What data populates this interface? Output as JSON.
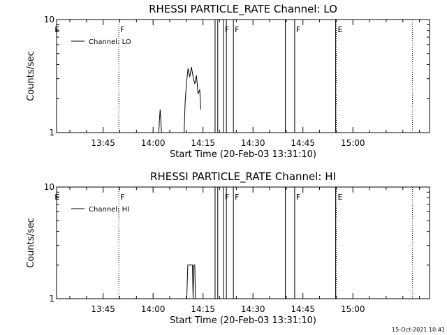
{
  "chart_data": [
    {
      "type": "line",
      "title": "RHESSI PARTICLE_RATE Channel: LO",
      "xlabel": "Start Time (20-Feb-03 13:31:10)",
      "ylabel": "Counts/sec",
      "x_tick_labels": [
        "13:45",
        "14:00",
        "14:15",
        "14:30",
        "14:45",
        "15:00"
      ],
      "x_tick_values_min": [
        13.98,
        28.98,
        43.98,
        58.98,
        73.98,
        88.98
      ],
      "xlim_min": [
        0,
        112
      ],
      "y_scale": "log",
      "ylim": [
        1,
        10
      ],
      "y_tick_labels": [
        "1",
        "10"
      ],
      "legend": {
        "placement": "top-left",
        "entries": [
          "Channel: LO"
        ]
      },
      "series": [
        {
          "name": "Channel: LO",
          "x_min": [
            30.7,
            30.9,
            31.1,
            31.3,
            31.5,
            38.3,
            38.6,
            39.0,
            39.5,
            40.0,
            40.5,
            41.0,
            41.5,
            42.0,
            42.5,
            43.0,
            43.3
          ],
          "y": [
            1,
            1.3,
            1.6,
            1.3,
            1,
            1,
            1.8,
            2.7,
            3.7,
            3.1,
            3.8,
            3.1,
            2.7,
            3.2,
            2.2,
            2.4,
            1.6
          ]
        }
      ],
      "flags": [
        {
          "label": "E",
          "x_min": -1.0,
          "line": "none"
        },
        {
          "label": "F",
          "x_min": 18.7,
          "line": "dotted"
        },
        {
          "label": "",
          "x_min": 47.6,
          "line": "solid"
        },
        {
          "label": "",
          "x_min": 48.4,
          "line": "solid"
        },
        {
          "label": "F",
          "x_min": 50.1,
          "line": "solid"
        },
        {
          "label": "",
          "x_min": 51.0,
          "line": "solid"
        },
        {
          "label": "F",
          "x_min": 53.1,
          "line": "solid"
        },
        {
          "label": "",
          "x_min": 68.7,
          "line": "solid"
        },
        {
          "label": "F",
          "x_min": 71.5,
          "line": "solid"
        },
        {
          "label": "",
          "x_min": 83.8,
          "line": "solid"
        },
        {
          "label": "E",
          "x_min": 84.0,
          "line": "dotted"
        },
        {
          "label": "",
          "x_min": 106.9,
          "line": "dotted"
        }
      ]
    },
    {
      "type": "line",
      "title": "RHESSI PARTICLE_RATE Channel: HI",
      "xlabel": "Start Time (20-Feb-03 13:31:10)",
      "ylabel": "Counts/sec",
      "x_tick_labels": [
        "13:45",
        "14:00",
        "14:15",
        "14:30",
        "14:45",
        "15:00"
      ],
      "x_tick_values_min": [
        13.98,
        28.98,
        43.98,
        58.98,
        73.98,
        88.98
      ],
      "xlim_min": [
        0,
        112
      ],
      "y_scale": "log",
      "ylim": [
        1,
        10
      ],
      "y_tick_labels": [
        "1",
        "10"
      ],
      "legend": {
        "placement": "top-left",
        "entries": [
          "Channel: HI"
        ]
      },
      "series": [
        {
          "name": "Channel: HI",
          "x_min": [
            39.1,
            39.4,
            40.8,
            41.0,
            41.2,
            41.5,
            41.7,
            42.0
          ],
          "y": [
            1,
            2,
            2,
            1,
            2,
            2,
            1,
            1
          ]
        }
      ],
      "flags": [
        {
          "label": "E",
          "x_min": -1.0,
          "line": "none"
        },
        {
          "label": "F",
          "x_min": 18.7,
          "line": "dotted"
        },
        {
          "label": "",
          "x_min": 47.6,
          "line": "solid"
        },
        {
          "label": "",
          "x_min": 48.4,
          "line": "solid"
        },
        {
          "label": "F",
          "x_min": 50.1,
          "line": "solid"
        },
        {
          "label": "",
          "x_min": 51.0,
          "line": "solid"
        },
        {
          "label": "F",
          "x_min": 53.1,
          "line": "solid"
        },
        {
          "label": "",
          "x_min": 68.7,
          "line": "solid"
        },
        {
          "label": "F",
          "x_min": 71.5,
          "line": "solid"
        },
        {
          "label": "",
          "x_min": 83.8,
          "line": "solid"
        },
        {
          "label": "E",
          "x_min": 84.0,
          "line": "dotted"
        },
        {
          "label": "",
          "x_min": 106.9,
          "line": "dotted"
        }
      ]
    }
  ],
  "footer": {
    "timestamp": "15-Oct-2021 10:41"
  }
}
